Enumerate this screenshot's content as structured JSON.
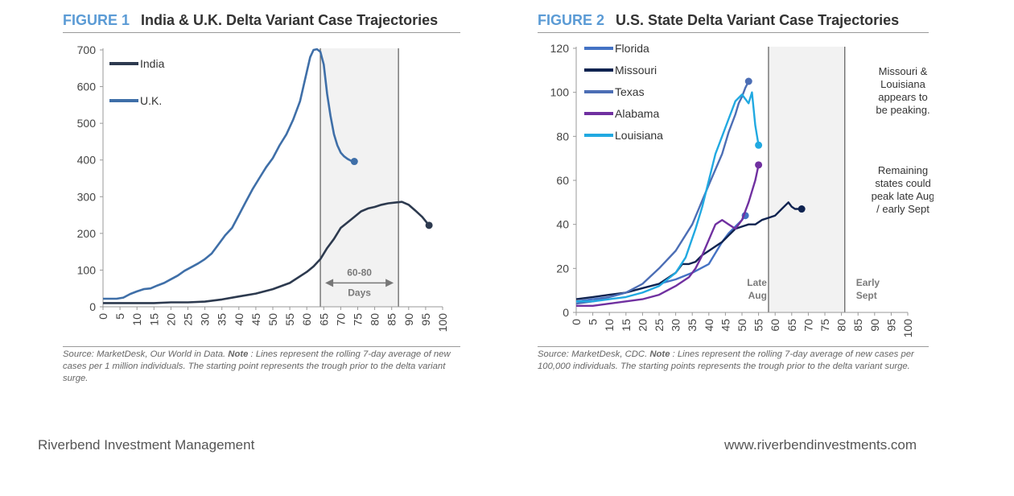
{
  "figure1": {
    "num_label": "FIGURE 1",
    "title": "India & U.K. Delta Variant Case Trajectories",
    "source_text": "Source: MarketDesk, Our World in Data.",
    "note_label": "Note",
    "note_text": ": Lines represent the rolling 7-day average of new cases per 1 million individuals. The starting point represents the trough prior to the delta variant surge.",
    "shade_label_1": "60-80",
    "shade_label_2": "Days"
  },
  "figure2": {
    "num_label": "FIGURE 2",
    "title": "U.S. State Delta Variant Case Trajectories",
    "source_text": "Source: MarketDesk, CDC.",
    "note_label": "Note",
    "note_text": ": Lines represent the rolling 7-day average of new cases per 100,000 individuals. The starting points represents the trough prior to the delta variant surge.",
    "late_aug_1": "Late",
    "late_aug_2": "Aug",
    "early_sept_1": "Early",
    "early_sept_2": "Sept",
    "annotation_1": [
      "Missouri &",
      "Louisiana",
      "appears to",
      "be peaking."
    ],
    "annotation_2": [
      "Remaining",
      "states could",
      "peak late Aug",
      "/ early Sept"
    ]
  },
  "footer": {
    "left": "Riverbend Investment Management",
    "right": "www.riverbendinvestments.com"
  },
  "chart_data": [
    {
      "type": "line",
      "title": "India & U.K. Delta Variant Case Trajectories",
      "x_ticks": [
        0,
        5,
        10,
        15,
        20,
        25,
        30,
        35,
        40,
        45,
        50,
        55,
        60,
        65,
        70,
        75,
        80,
        85,
        90,
        95,
        100
      ],
      "y_ticks": [
        0,
        100,
        200,
        300,
        400,
        500,
        600,
        700
      ],
      "xlim": [
        0,
        100
      ],
      "ylim": [
        0,
        700
      ],
      "legend_position": "top-left",
      "grid": false,
      "shaded_region": [
        64,
        87
      ],
      "series": [
        {
          "name": "India",
          "color": "#2d3a4f",
          "x": [
            0,
            5,
            10,
            15,
            20,
            25,
            30,
            35,
            40,
            45,
            50,
            55,
            60,
            62,
            64,
            66,
            68,
            70,
            72,
            74,
            76,
            78,
            80,
            82,
            84,
            86,
            88,
            90,
            92,
            94,
            96
          ],
          "y": [
            10,
            10,
            10,
            10,
            12,
            12,
            14,
            20,
            28,
            36,
            48,
            65,
            95,
            110,
            130,
            160,
            185,
            215,
            230,
            245,
            260,
            268,
            272,
            278,
            282,
            284,
            286,
            278,
            262,
            245,
            222
          ]
        },
        {
          "name": "U.K.",
          "color": "#3f6fa8",
          "x": [
            0,
            4,
            6,
            8,
            10,
            12,
            14,
            16,
            18,
            20,
            22,
            24,
            26,
            28,
            30,
            32,
            34,
            36,
            38,
            40,
            42,
            44,
            46,
            48,
            50,
            52,
            54,
            56,
            58,
            59,
            60,
            61,
            62,
            63,
            64,
            65,
            66,
            67,
            68,
            69,
            70,
            71,
            72,
            73,
            74
          ],
          "y": [
            22,
            22,
            25,
            35,
            42,
            48,
            50,
            58,
            65,
            75,
            85,
            98,
            108,
            118,
            130,
            145,
            170,
            195,
            215,
            250,
            285,
            320,
            350,
            380,
            405,
            440,
            470,
            510,
            560,
            600,
            640,
            680,
            700,
            702,
            695,
            660,
            580,
            520,
            470,
            440,
            420,
            410,
            403,
            398,
            396
          ]
        }
      ]
    },
    {
      "type": "line",
      "title": "U.S. State Delta Variant Case Trajectories",
      "x_ticks": [
        0,
        5,
        10,
        15,
        20,
        25,
        30,
        35,
        40,
        45,
        50,
        55,
        60,
        65,
        70,
        75,
        80,
        85,
        90,
        95,
        100
      ],
      "y_ticks": [
        0,
        20,
        40,
        60,
        80,
        100,
        120
      ],
      "xlim": [
        0,
        100
      ],
      "ylim": [
        0,
        120
      ],
      "legend_position": "top-left",
      "grid": false,
      "shaded_region": [
        58,
        81
      ],
      "series": [
        {
          "name": "Florida",
          "color": "#4472c4",
          "x": [
            0,
            5,
            10,
            15,
            20,
            25,
            30,
            35,
            40,
            42,
            44,
            46,
            48,
            50,
            51
          ],
          "y": [
            5,
            6,
            7,
            9,
            11,
            13,
            15,
            18,
            22,
            27,
            32,
            36,
            39,
            42,
            44
          ]
        },
        {
          "name": "Missouri",
          "color": "#0f2350",
          "x": [
            0,
            5,
            10,
            15,
            20,
            25,
            28,
            30,
            32,
            34,
            36,
            38,
            40,
            42,
            44,
            46,
            48,
            50,
            52,
            54,
            56,
            58,
            60,
            62,
            64,
            65,
            66,
            68
          ],
          "y": [
            6,
            7,
            8,
            9,
            11,
            13,
            16,
            18,
            22,
            22,
            23,
            26,
            28,
            30,
            32,
            35,
            38,
            39,
            40,
            40,
            42,
            43,
            44,
            47,
            50,
            48,
            47,
            47
          ]
        },
        {
          "name": "Texas",
          "color": "#4c6eb5",
          "x": [
            0,
            5,
            10,
            15,
            20,
            25,
            30,
            35,
            40,
            44,
            46,
            48,
            49,
            50,
            51,
            52
          ],
          "y": [
            4,
            5,
            7,
            9,
            13,
            20,
            28,
            40,
            58,
            72,
            82,
            90,
            95,
            98,
            102,
            105
          ]
        },
        {
          "name": "Alabama",
          "color": "#7030a0",
          "x": [
            0,
            5,
            10,
            15,
            20,
            25,
            30,
            34,
            36,
            38,
            40,
            42,
            44,
            46,
            48,
            50,
            52,
            54,
            55
          ],
          "y": [
            3,
            3,
            4,
            5,
            6,
            8,
            12,
            16,
            20,
            26,
            33,
            40,
            42,
            40,
            38,
            42,
            50,
            60,
            67
          ]
        },
        {
          "name": "Louisiana",
          "color": "#21a9e1",
          "x": [
            0,
            5,
            10,
            15,
            20,
            25,
            30,
            33,
            36,
            38,
            40,
            42,
            44,
            46,
            48,
            50,
            52,
            53,
            54,
            55
          ],
          "y": [
            5,
            5,
            6,
            7,
            9,
            12,
            18,
            25,
            38,
            48,
            60,
            72,
            80,
            88,
            96,
            99,
            95,
            100,
            85,
            76
          ]
        }
      ]
    }
  ]
}
